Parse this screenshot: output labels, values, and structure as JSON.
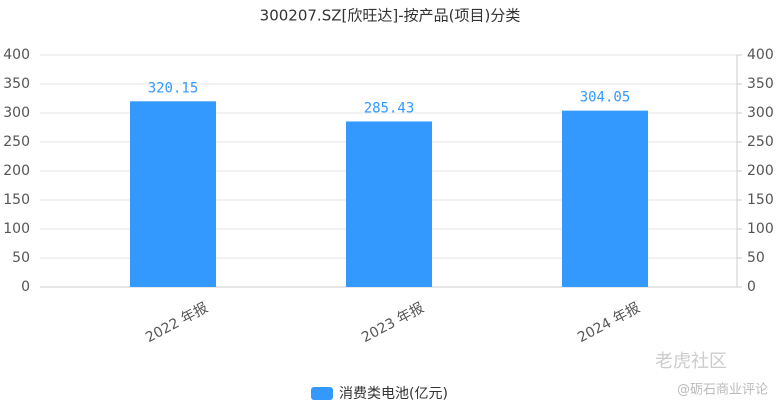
{
  "chart_data": {
    "type": "bar",
    "title": "300207.SZ[欣旺达]-按产品(项目)分类",
    "categories": [
      "2022 年报",
      "2023 年报",
      "2024 年报"
    ],
    "series": [
      {
        "name": "消费类电池(亿元)",
        "color": "#3399ff",
        "values": [
          320.15,
          285.43,
          304.05
        ]
      }
    ],
    "ylim": [
      0,
      400
    ],
    "yticks": [
      0,
      50,
      100,
      150,
      200,
      250,
      300,
      350,
      400
    ],
    "y2lim": [
      0,
      400
    ],
    "y2ticks": [
      0,
      50,
      100,
      150,
      200,
      250,
      300,
      350,
      400
    ],
    "grid": true,
    "legend": "bottom",
    "watermark": [
      "老虎社区",
      "@砺石商业评论"
    ]
  }
}
